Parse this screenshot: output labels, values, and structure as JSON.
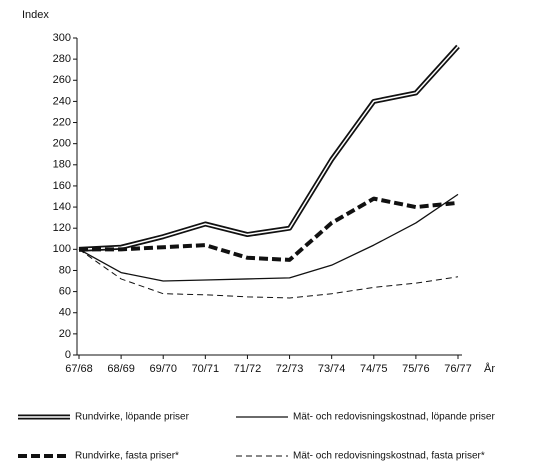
{
  "chart_data": {
    "type": "line",
    "y_label": "Index",
    "x_label": "År",
    "categories": [
      "67/68",
      "68/69",
      "69/70",
      "70/71",
      "71/72",
      "72/73",
      "73/74",
      "74/75",
      "75/76",
      "76/77"
    ],
    "ylim": [
      0,
      300
    ],
    "yticks": [
      0,
      20,
      40,
      60,
      80,
      100,
      120,
      140,
      160,
      180,
      200,
      220,
      240,
      260,
      280,
      300
    ],
    "series": [
      {
        "name": "Rundvirke, löpande priser",
        "color": "#111111",
        "line_style": "double",
        "values": [
          100,
          102,
          112,
          124,
          114,
          120,
          185,
          240,
          248,
          292
        ]
      },
      {
        "name": "Mät- och redovisningskostnad, löpande priser",
        "color": "#111111",
        "line_style": "solid",
        "values": [
          100,
          78,
          70,
          71,
          72,
          73,
          85,
          104,
          125,
          152
        ]
      },
      {
        "name": "Rundvirke, fasta priser*",
        "color": "#111111",
        "line_style": "thick-dashed",
        "values": [
          100,
          100,
          102,
          104,
          92,
          90,
          125,
          148,
          140,
          144
        ]
      },
      {
        "name": "Mät- och redovisningskostnad, fasta priser*",
        "color": "#111111",
        "line_style": "dashed",
        "values": [
          100,
          72,
          58,
          57,
          55,
          54,
          58,
          64,
          68,
          74
        ]
      }
    ]
  }
}
